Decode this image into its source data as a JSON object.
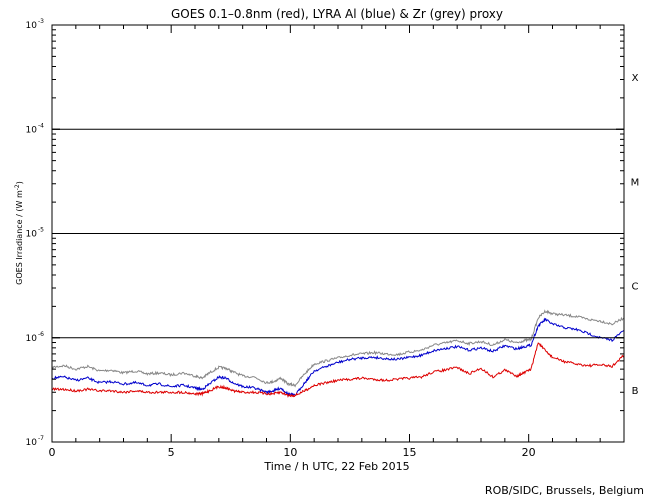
{
  "chart_data": {
    "type": "line",
    "title": "GOES 0.1–0.8nm (red), LYRA Al (blue) & Zr (grey) proxy",
    "xlabel": "Time / h UTC, 22 Feb 2015",
    "ylabel": "GOES Irradiance / (W m",
    "ylabel_exp": "-2",
    "ylabel_close": ")",
    "credit": "ROB/SIDC, Brussels, Belgium",
    "xlim": [
      0,
      24
    ],
    "ylim": [
      1e-07,
      0.001
    ],
    "yscale": "log",
    "x_ticks": [
      {
        "value": 0,
        "label": "0"
      },
      {
        "value": 5,
        "label": "5"
      },
      {
        "value": 10,
        "label": "10"
      },
      {
        "value": 15,
        "label": "15"
      },
      {
        "value": 20,
        "label": "20"
      }
    ],
    "y_ticks": [
      {
        "exp": -7,
        "label": "10",
        "sup": "-7"
      },
      {
        "exp": -6,
        "label": "10",
        "sup": "-6"
      },
      {
        "exp": -5,
        "label": "10",
        "sup": "-5"
      },
      {
        "exp": -4,
        "label": "10",
        "sup": "-4"
      },
      {
        "exp": -3,
        "label": "10",
        "sup": "-3"
      }
    ],
    "class_lines": [
      1e-06,
      1e-05,
      0.0001
    ],
    "flare_classes": [
      {
        "label": "B",
        "exp": -6.5
      },
      {
        "label": "C",
        "exp": -5.5
      },
      {
        "label": "M",
        "exp": -4.5
      },
      {
        "label": "X",
        "exp": -3.5
      }
    ],
    "series": [
      {
        "color": "#888888",
        "x": [
          0,
          0.5,
          1,
          1.5,
          2,
          2.5,
          3,
          3.5,
          4,
          4.5,
          5,
          5.5,
          6,
          6.3,
          6.6,
          7,
          7.3,
          7.6,
          8,
          8.5,
          9,
          9.3,
          9.6,
          9.9,
          10.2,
          10.6,
          11,
          11.5,
          12,
          12.5,
          13,
          13.5,
          14,
          14.5,
          15,
          15.5,
          16,
          16.5,
          17,
          17.5,
          18,
          18.5,
          19,
          19.5,
          19.8,
          20.1,
          20.4,
          20.7,
          21,
          21.5,
          22,
          22.5,
          23,
          23.5,
          24
        ],
        "y": [
          5.2e-07,
          5.4e-07,
          5e-07,
          5.3e-07,
          4.8e-07,
          4.9e-07,
          4.6e-07,
          4.8e-07,
          4.5e-07,
          4.6e-07,
          4.4e-07,
          4.6e-07,
          4.3e-07,
          4.1e-07,
          4.6e-07,
          5.2e-07,
          5.1e-07,
          4.7e-07,
          4.3e-07,
          4.2e-07,
          3.7e-07,
          3.8e-07,
          4.1e-07,
          3.6e-07,
          3.5e-07,
          4.5e-07,
          5.6e-07,
          6e-07,
          6.4e-07,
          6.8e-07,
          7e-07,
          7.2e-07,
          7e-07,
          6.9e-07,
          7.3e-07,
          7.6e-07,
          8.5e-07,
          8.9e-07,
          9.4e-07,
          8.8e-07,
          9.2e-07,
          8.5e-07,
          9.6e-07,
          8.9e-07,
          9.4e-07,
          9.6e-07,
          1.55e-06,
          1.8e-06,
          1.7e-06,
          1.65e-06,
          1.6e-06,
          1.5e-06,
          1.45e-06,
          1.35e-06,
          1.55e-06
        ]
      },
      {
        "color": "#0000cc",
        "x": [
          0,
          0.5,
          1,
          1.5,
          2,
          2.5,
          3,
          3.5,
          4,
          4.5,
          5,
          5.5,
          6,
          6.3,
          6.6,
          7,
          7.3,
          7.6,
          8,
          8.5,
          9,
          9.3,
          9.6,
          9.9,
          10.2,
          10.6,
          11,
          11.5,
          12,
          12.5,
          13,
          13.5,
          14,
          14.5,
          15,
          15.5,
          16,
          16.5,
          17,
          17.5,
          18,
          18.5,
          19,
          19.5,
          19.8,
          20.1,
          20.4,
          20.7,
          21,
          21.5,
          22,
          22.5,
          23,
          23.5,
          24
        ],
        "y": [
          4.1e-07,
          4.2e-07,
          3.9e-07,
          4.1e-07,
          3.7e-07,
          3.8e-07,
          3.6e-07,
          3.7e-07,
          3.5e-07,
          3.6e-07,
          3.4e-07,
          3.5e-07,
          3.3e-07,
          3.2e-07,
          3.6e-07,
          4.2e-07,
          4.1e-07,
          3.7e-07,
          3.4e-07,
          3.3e-07,
          3e-07,
          3.1e-07,
          3.3e-07,
          2.9e-07,
          2.8e-07,
          3.7e-07,
          4.8e-07,
          5.3e-07,
          5.8e-07,
          6.2e-07,
          6.4e-07,
          6.5e-07,
          6.3e-07,
          6.2e-07,
          6.5e-07,
          6.8e-07,
          7.5e-07,
          7.9e-07,
          8.2e-07,
          7.6e-07,
          8e-07,
          7.4e-07,
          8.4e-07,
          7.8e-07,
          8.2e-07,
          8.5e-07,
          1.3e-06,
          1.5e-06,
          1.35e-06,
          1.25e-06,
          1.2e-06,
          1.1e-06,
          1e-06,
          9.5e-07,
          1.18e-06
        ]
      },
      {
        "color": "#dd0000",
        "x": [
          0,
          0.5,
          1,
          1.5,
          2,
          2.5,
          3,
          3.5,
          4,
          4.5,
          5,
          5.5,
          6,
          6.3,
          6.6,
          7,
          7.3,
          7.6,
          8,
          8.5,
          9,
          9.3,
          9.6,
          9.9,
          10.2,
          10.6,
          11,
          11.5,
          12,
          12.5,
          13,
          13.5,
          14,
          14.5,
          15,
          15.5,
          16,
          16.5,
          17,
          17.5,
          18,
          18.5,
          19,
          19.5,
          19.8,
          20.1,
          20.4,
          20.7,
          21,
          21.5,
          22,
          22.5,
          23,
          23.5,
          24
        ],
        "y": [
          3.2e-07,
          3.2e-07,
          3.1e-07,
          3.2e-07,
          3.1e-07,
          3.1e-07,
          3e-07,
          3.1e-07,
          3e-07,
          3e-07,
          3e-07,
          3e-07,
          2.9e-07,
          2.9e-07,
          3.1e-07,
          3.4e-07,
          3.3e-07,
          3.1e-07,
          3e-07,
          3e-07,
          2.9e-07,
          2.9e-07,
          3e-07,
          2.8e-07,
          2.8e-07,
          3.1e-07,
          3.5e-07,
          3.7e-07,
          3.9e-07,
          4e-07,
          4.1e-07,
          4e-07,
          3.9e-07,
          4e-07,
          4.1e-07,
          4.2e-07,
          4.7e-07,
          4.9e-07,
          5.2e-07,
          4.5e-07,
          5.1e-07,
          4.2e-07,
          4.9e-07,
          4.3e-07,
          4.6e-07,
          5e-07,
          9e-07,
          7.5e-07,
          6.5e-07,
          5.9e-07,
          5.6e-07,
          5.4e-07,
          5.5e-07,
          5.3e-07,
          6.8e-07
        ]
      }
    ]
  }
}
